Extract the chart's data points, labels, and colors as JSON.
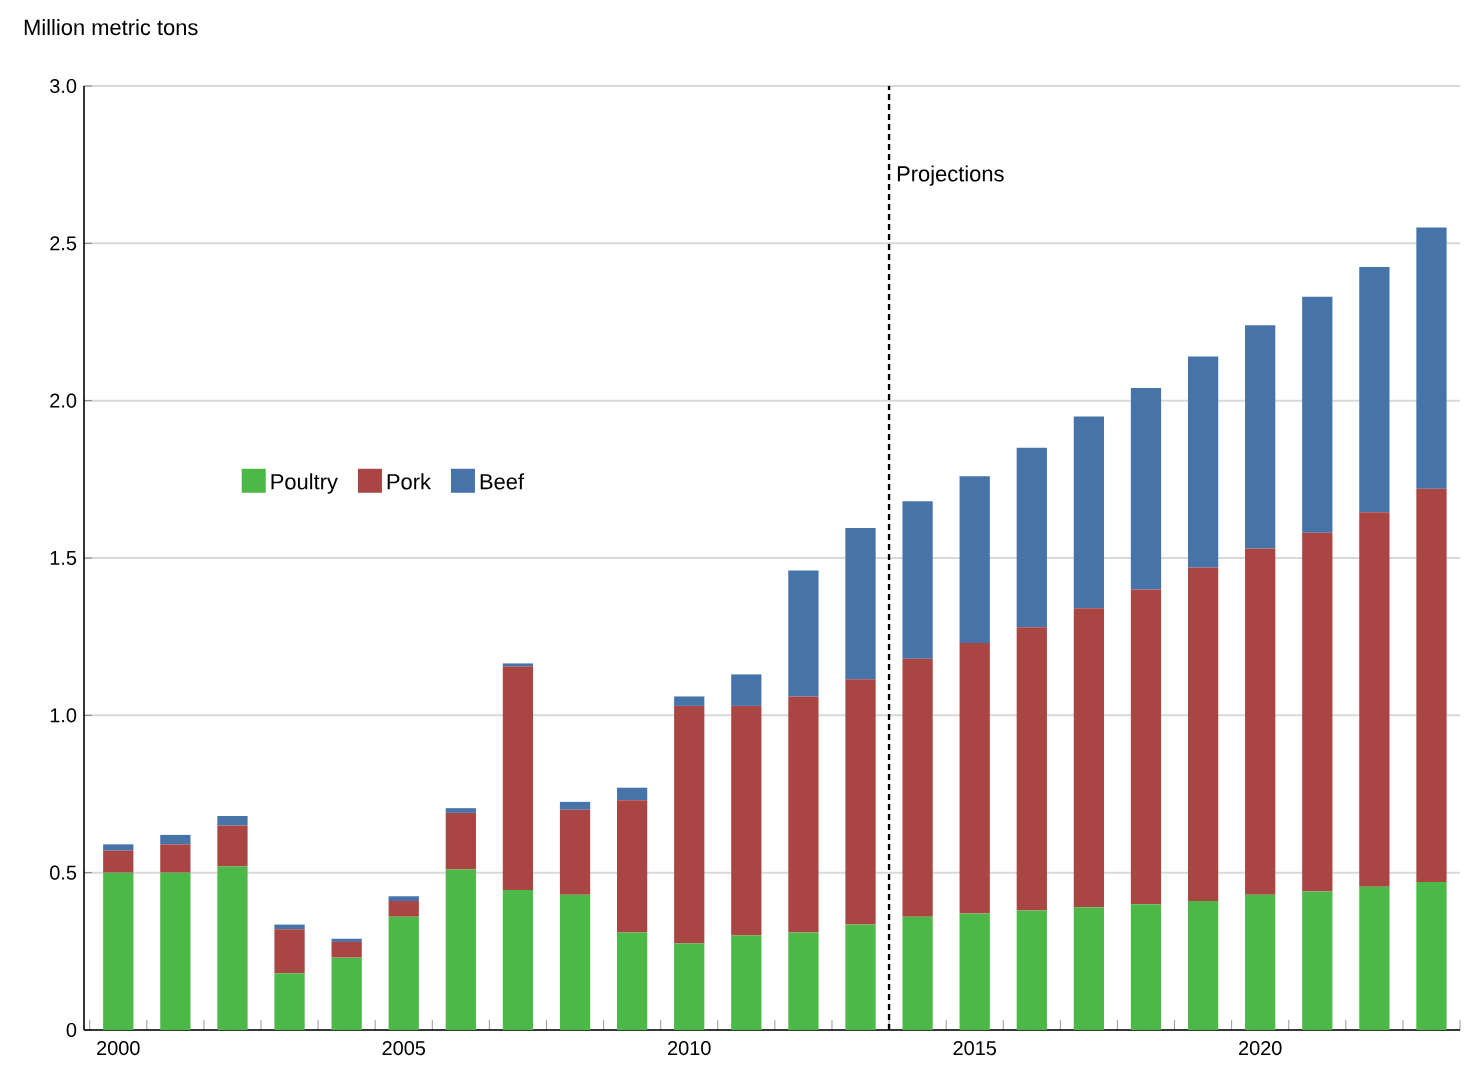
{
  "chart_data": {
    "type": "bar",
    "stacked": true,
    "ylabel": "Million metric tons",
    "x": [
      2000,
      2001,
      2002,
      2003,
      2004,
      2005,
      2006,
      2007,
      2008,
      2009,
      2010,
      2011,
      2012,
      2013,
      2014,
      2015,
      2016,
      2017,
      2018,
      2019,
      2020,
      2021,
      2022,
      2023
    ],
    "series": [
      {
        "name": "Poultry",
        "color": "#4cb847",
        "values": [
          0.5,
          0.5,
          0.52,
          0.18,
          0.23,
          0.36,
          0.51,
          0.445,
          0.43,
          0.31,
          0.275,
          0.3,
          0.31,
          0.335,
          0.36,
          0.37,
          0.38,
          0.39,
          0.4,
          0.41,
          0.43,
          0.44,
          0.455,
          0.47
        ]
      },
      {
        "name": "Pork",
        "color": "#a94644",
        "values": [
          0.07,
          0.09,
          0.13,
          0.14,
          0.05,
          0.05,
          0.18,
          0.71,
          0.27,
          0.42,
          0.755,
          0.73,
          0.75,
          0.78,
          0.82,
          0.86,
          0.9,
          0.95,
          1.0,
          1.06,
          1.1,
          1.14,
          1.19,
          1.25
        ]
      },
      {
        "name": "Beef",
        "color": "#4673a8",
        "values": [
          0.02,
          0.03,
          0.03,
          0.015,
          0.01,
          0.015,
          0.015,
          0.01,
          0.025,
          0.04,
          0.03,
          0.1,
          0.4,
          0.48,
          0.5,
          0.53,
          0.57,
          0.61,
          0.64,
          0.67,
          0.71,
          0.75,
          0.78,
          0.83
        ]
      }
    ],
    "xlim": [
      1999.4,
      2023.5
    ],
    "xticks": [
      2000,
      2005,
      2010,
      2015,
      2020
    ],
    "ylim": [
      0,
      3.0
    ],
    "yticks": [
      0,
      {
        "value": 0.5,
        "label": "0.5"
      },
      {
        "value": 1.0,
        "label": "1.0"
      },
      {
        "value": 1.5,
        "label": "1.5"
      },
      {
        "value": 2.0,
        "label": "2.0"
      },
      {
        "value": 2.5,
        "label": "2.5"
      },
      {
        "value": 3.0,
        "label": "3.0"
      }
    ],
    "grid": "y",
    "legend": "left",
    "ref_lines": [
      {
        "axis": "x",
        "value": 2013.5,
        "label": "Projections",
        "line_style": "dashed"
      }
    ]
  }
}
